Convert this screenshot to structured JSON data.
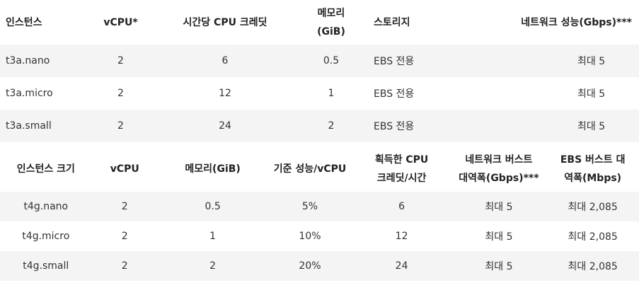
{
  "table1": {
    "headers": {
      "instance": "인스턴스",
      "vcpu": "vCPU*",
      "credits": "시간당 CPU 크레딧",
      "memory_line1": "메모리",
      "memory_line2": "(GiB)",
      "storage": "스토리지",
      "network": "네트워크 성능(Gbps)***"
    },
    "rows": [
      {
        "instance": "t3a.nano",
        "vcpu": "2",
        "credits": "6",
        "memory": "0.5",
        "storage": "EBS 전용",
        "network": "최대 5"
      },
      {
        "instance": "t3a.micro",
        "vcpu": "2",
        "credits": "12",
        "memory": "1",
        "storage": "EBS 전용",
        "network": "최대 5"
      },
      {
        "instance": "t3a.small",
        "vcpu": "2",
        "credits": "24",
        "memory": "2",
        "storage": "EBS 전용",
        "network": "최대 5"
      }
    ]
  },
  "table2": {
    "headers": {
      "size": "인스턴스 크기",
      "vcpu": "vCPU",
      "memory": "메모리(GiB)",
      "baseline": "기준 성능/vCPU",
      "credits_line1": "획득한 CPU",
      "credits_line2": "크레딧/시간",
      "network_line1": "네트워크 버스트",
      "network_line2": "대역폭(Gbps)***",
      "ebs_line1": "EBS 버스트 대",
      "ebs_line2": "역폭(Mbps)"
    },
    "rows": [
      {
        "size": "t4g.nano",
        "vcpu": "2",
        "memory": "0.5",
        "baseline": "5%",
        "credits": "6",
        "network": "최대 5",
        "ebs": "최대 2,085"
      },
      {
        "size": "t4g.micro",
        "vcpu": "2",
        "memory": "1",
        "baseline": "10%",
        "credits": "12",
        "network": "최대 5",
        "ebs": "최대 2,085"
      },
      {
        "size": "t4g.small",
        "vcpu": "2",
        "memory": "2",
        "baseline": "20%",
        "credits": "24",
        "network": "최대 5",
        "ebs": "최대 2,085"
      }
    ]
  }
}
